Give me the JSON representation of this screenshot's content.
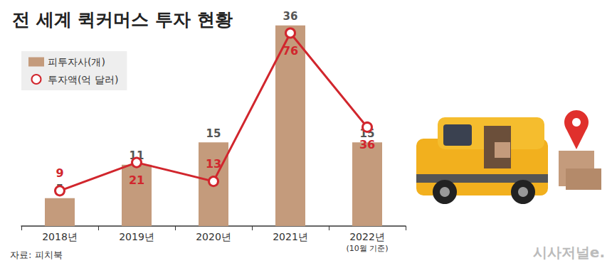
{
  "chart_data": {
    "type": "bar",
    "title": "전 세계 퀵커머스 투자 현황",
    "source": "자료: 피치북",
    "credit": "시사저널e.",
    "categories": [
      "2018년",
      "2019년",
      "2020년",
      "2021년",
      "2022년"
    ],
    "annotations": [
      {
        "category": "2022년",
        "text": "(10월 기준)"
      }
    ],
    "series": [
      {
        "name": "피투자사(개)",
        "type": "bar",
        "color": "#c49b7c",
        "values": [
          5,
          11,
          15,
          36,
          15
        ]
      },
      {
        "name": "투자액(억 달러)",
        "type": "line",
        "axis": "y2",
        "color": "#d1262d",
        "marker": "circle",
        "line_style": "solid",
        "values": [
          9,
          21,
          13,
          76,
          36
        ]
      }
    ],
    "ylim": [
      0,
      38
    ],
    "yticks": [
      0,
      38
    ],
    "y2lim": [
      -6,
      84
    ],
    "y2ticks": [
      -6,
      84
    ],
    "grid": false,
    "legend": "top-left",
    "data_labels": true,
    "tick_labels": "x"
  }
}
